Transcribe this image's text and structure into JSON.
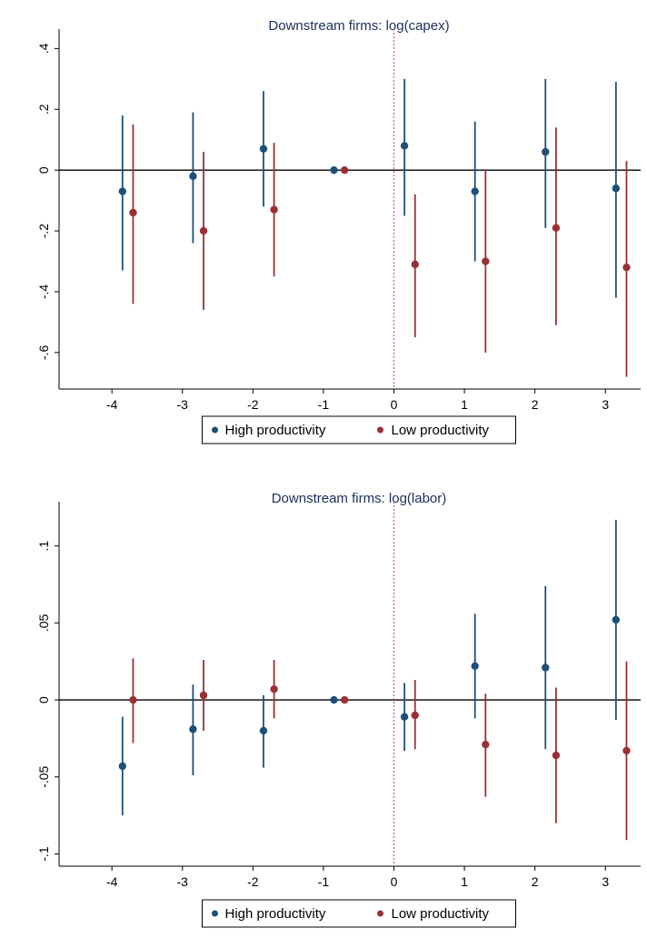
{
  "colors": {
    "high": "#1f4e79",
    "low": "#9b2f35",
    "zero_line": "#000000",
    "event_line": "#e05a7a"
  },
  "legend": {
    "high_label": "High productivity",
    "low_label": "Low productivity"
  },
  "chart_data": [
    {
      "type": "scatter",
      "title": "Downstream firms: log(capex)",
      "xlabel": "",
      "ylabel": "",
      "x_ticks": [
        "-4",
        "-3",
        "-2",
        "-1",
        "0",
        "1",
        "2",
        "3"
      ],
      "y_ticks": [
        ".4",
        ".2",
        "0",
        "-.2",
        "-.4",
        "-.6"
      ],
      "y_tick_values": [
        0.4,
        0.2,
        0,
        -0.2,
        -0.4,
        -0.6
      ],
      "ylim": [
        -0.72,
        0.44
      ],
      "xlim": [
        -4.75,
        3.5
      ],
      "event_line_x": 0,
      "series": [
        {
          "name": "High productivity",
          "x": [
            -3.85,
            -2.85,
            -1.85,
            -0.85,
            0.15,
            1.15,
            2.15,
            3.15
          ],
          "y": [
            -0.07,
            -0.02,
            0.07,
            0.0,
            0.08,
            -0.07,
            0.06,
            -0.06
          ],
          "ci_low": [
            -0.33,
            -0.24,
            -0.12,
            0.0,
            -0.15,
            -0.3,
            -0.19,
            -0.42
          ],
          "ci_high": [
            0.18,
            0.19,
            0.26,
            0.0,
            0.3,
            0.16,
            0.3,
            0.29
          ]
        },
        {
          "name": "Low productivity",
          "x": [
            -3.7,
            -2.7,
            -1.7,
            -0.7,
            0.3,
            1.3,
            2.3,
            3.3
          ],
          "y": [
            -0.14,
            -0.2,
            -0.13,
            0.0,
            -0.31,
            -0.3,
            -0.19,
            -0.32
          ],
          "ci_low": [
            -0.44,
            -0.46,
            -0.35,
            0.0,
            -0.55,
            -0.6,
            -0.51,
            -0.68
          ],
          "ci_high": [
            0.15,
            0.06,
            0.09,
            0.0,
            -0.08,
            0.0,
            0.14,
            0.03
          ]
        }
      ]
    },
    {
      "type": "scatter",
      "title": "Downstream firms: log(labor)",
      "xlabel": "",
      "ylabel": "",
      "x_ticks": [
        "-4",
        "-3",
        "-2",
        "-1",
        "0",
        "1",
        "2",
        "3"
      ],
      "y_ticks": [
        ".1",
        ".05",
        "0",
        "-.05",
        "-.1"
      ],
      "y_tick_values": [
        0.1,
        0.05,
        0,
        -0.05,
        -0.1
      ],
      "ylim": [
        -0.108,
        0.124
      ],
      "xlim": [
        -4.75,
        3.5
      ],
      "event_line_x": 0,
      "series": [
        {
          "name": "High productivity",
          "x": [
            -3.85,
            -2.85,
            -1.85,
            -0.85,
            0.15,
            1.15,
            2.15,
            3.15
          ],
          "y": [
            -0.043,
            -0.019,
            -0.02,
            0.0,
            -0.011,
            0.022,
            0.021,
            0.052
          ],
          "ci_low": [
            -0.075,
            -0.049,
            -0.044,
            0.0,
            -0.033,
            -0.012,
            -0.032,
            -0.013
          ],
          "ci_high": [
            -0.011,
            0.01,
            0.003,
            0.0,
            0.011,
            0.056,
            0.074,
            0.117
          ]
        },
        {
          "name": "Low productivity",
          "x": [
            -3.7,
            -2.7,
            -1.7,
            -0.7,
            0.3,
            1.3,
            2.3,
            3.3
          ],
          "y": [
            0.0,
            0.003,
            0.007,
            0.0,
            -0.01,
            -0.029,
            -0.036,
            -0.033
          ],
          "ci_low": [
            -0.028,
            -0.02,
            -0.012,
            0.0,
            -0.032,
            -0.063,
            -0.08,
            -0.091
          ],
          "ci_high": [
            0.027,
            0.026,
            0.026,
            0.0,
            0.013,
            0.004,
            0.008,
            0.025
          ]
        }
      ]
    }
  ]
}
